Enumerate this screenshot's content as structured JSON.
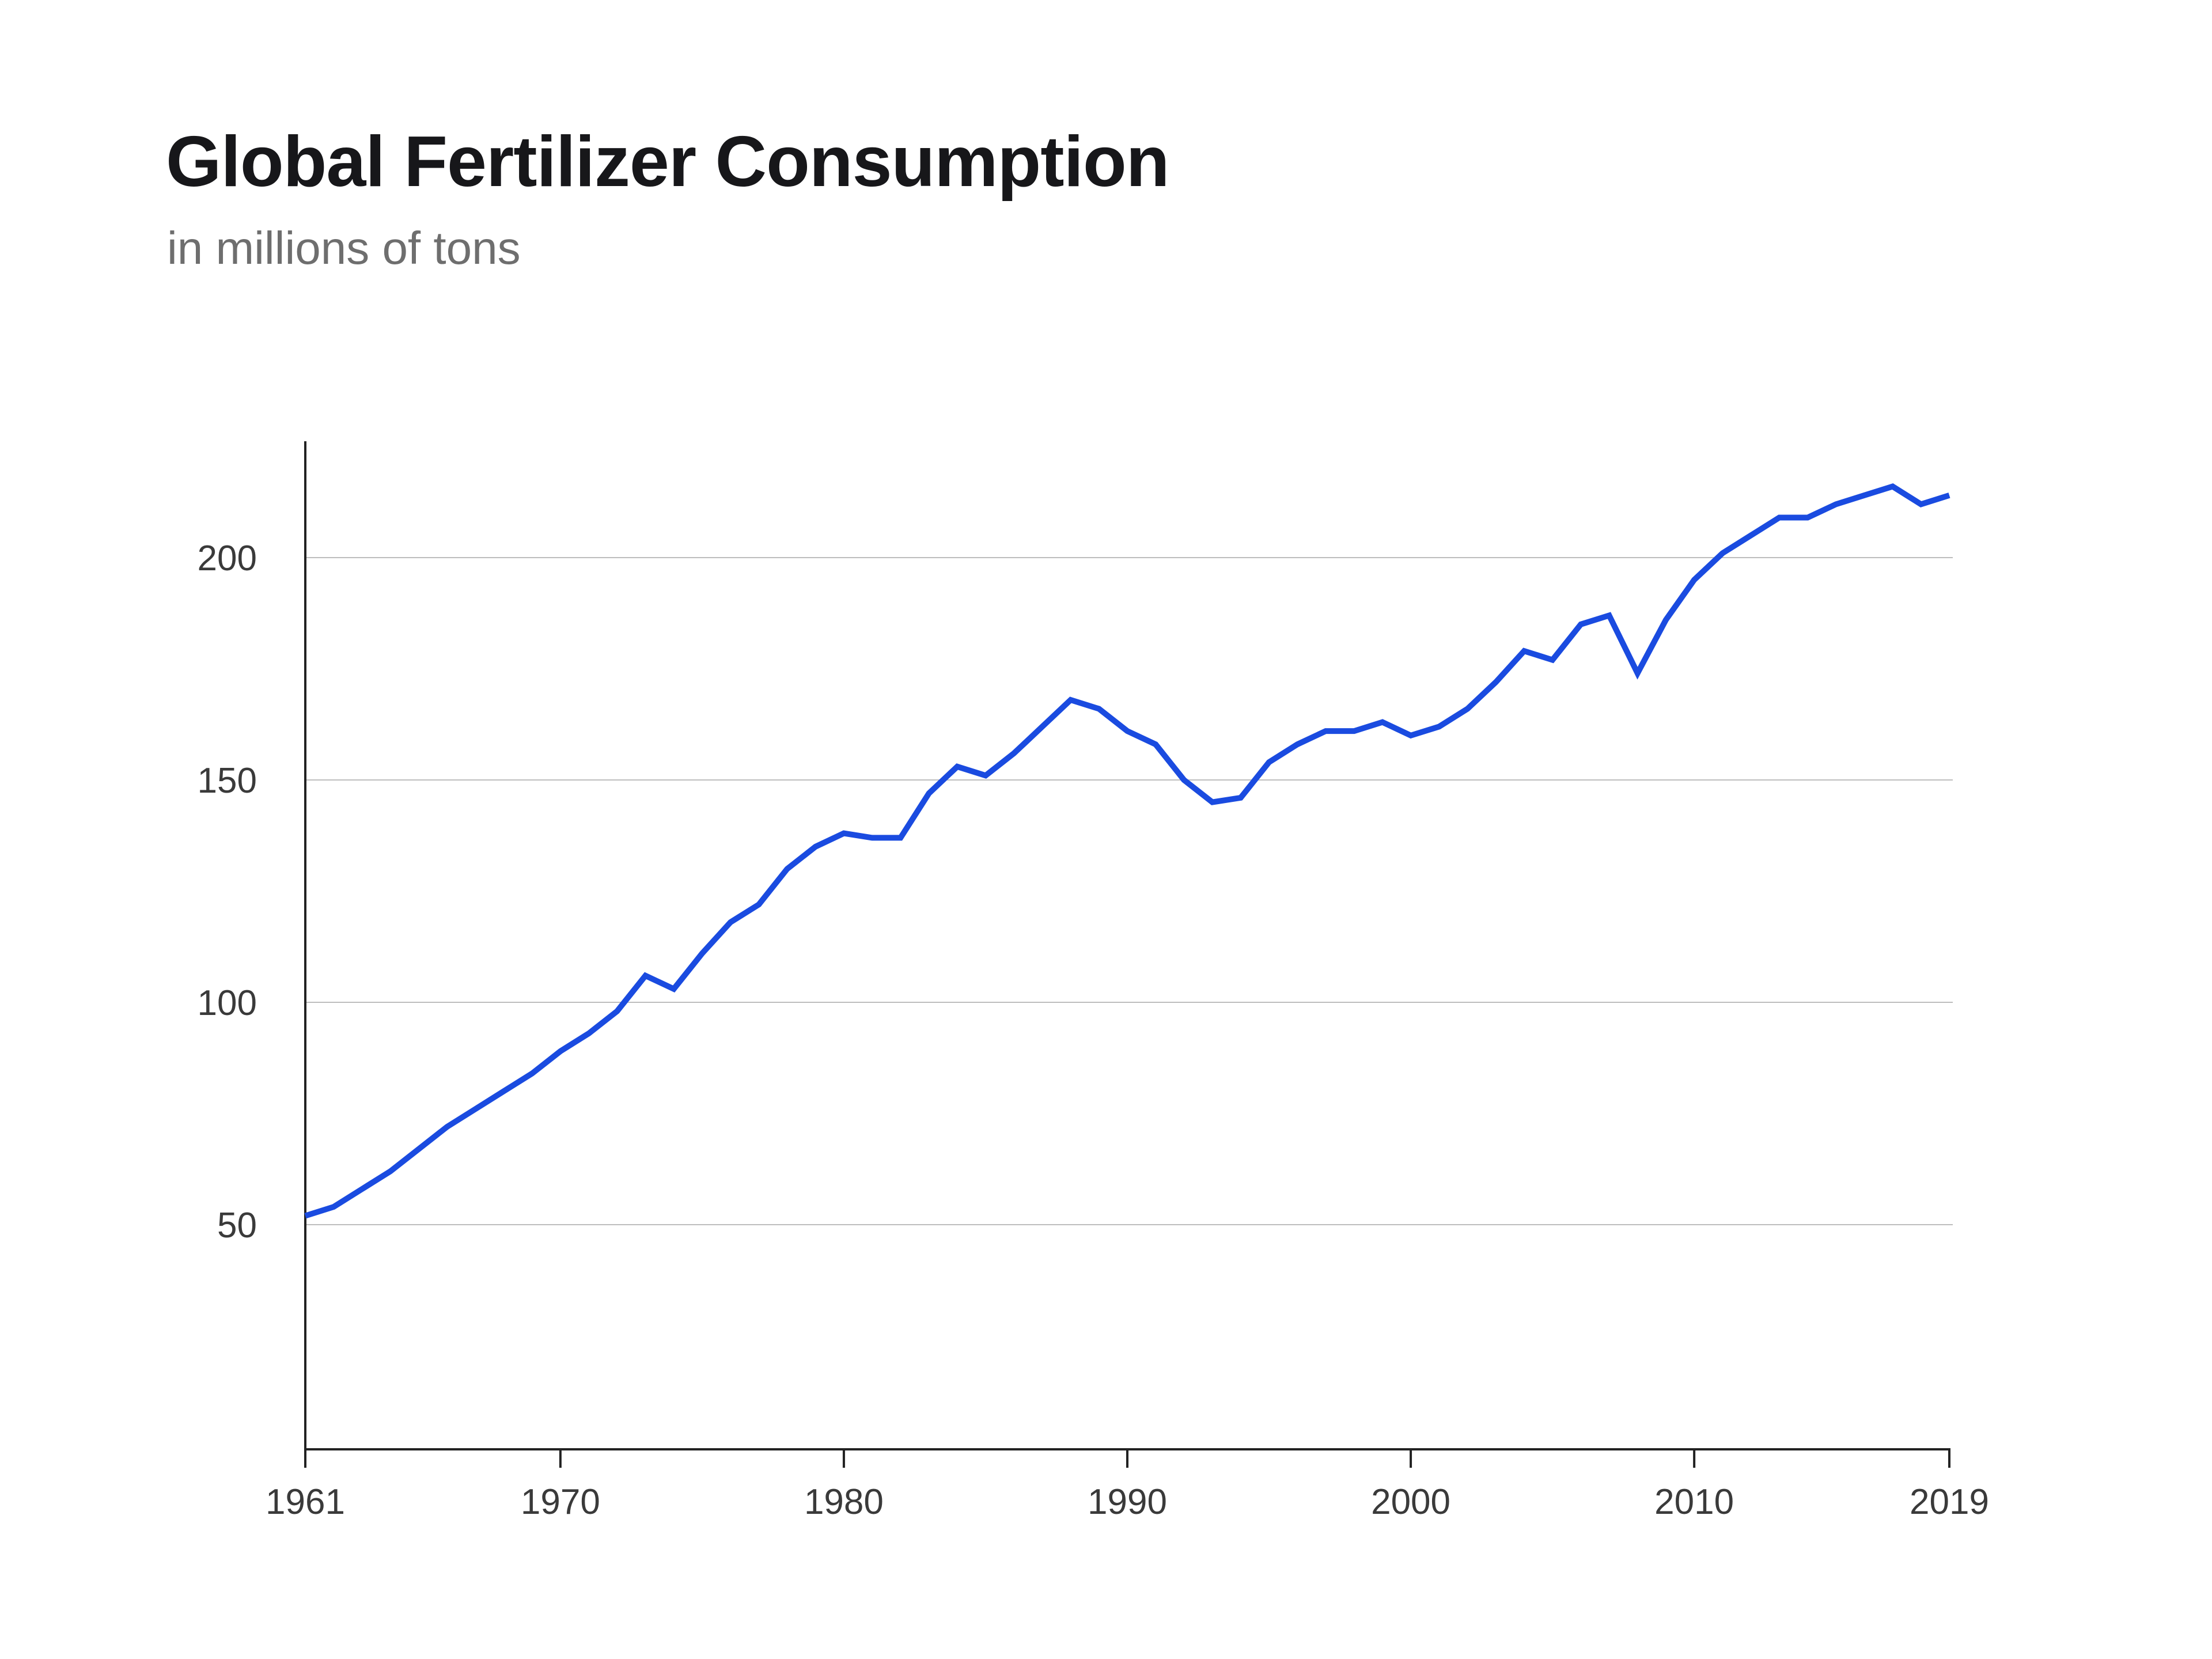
{
  "header": {
    "title": "Global Fertilizer Consumption",
    "subtitle": "in millions of tons"
  },
  "colors": {
    "line": "#1a4be0",
    "axis": "#222222",
    "grid": "#bdbdbd",
    "text": "#3a3a3a"
  },
  "chart_data": {
    "type": "line",
    "title": "Global Fertilizer Consumption",
    "subtitle": "in millions of tons",
    "xlabel": "",
    "ylabel": "",
    "xlim": [
      1961,
      2019
    ],
    "ylim": [
      0,
      226
    ],
    "grid": true,
    "legend": "none",
    "x_ticks": [
      1961,
      1970,
      1980,
      1990,
      2000,
      2010,
      2019
    ],
    "y_ticks": [
      50,
      100,
      150,
      200
    ],
    "series": [
      {
        "x": [
          1961,
          1962,
          1963,
          1964,
          1965,
          1966,
          1967,
          1968,
          1969,
          1970,
          1971,
          1972,
          1973,
          1974,
          1975,
          1976,
          1977,
          1978,
          1979,
          1980,
          1981,
          1982,
          1983,
          1984,
          1985,
          1986,
          1987,
          1988,
          1989,
          1990,
          1991,
          1992,
          1993,
          1994,
          1995,
          1996,
          1997,
          1998,
          1999,
          2000,
          2001,
          2002,
          2003,
          2004,
          2005,
          2006,
          2007,
          2008,
          2009,
          2010,
          2011,
          2012,
          2013,
          2014,
          2015,
          2016,
          2017,
          2018,
          2019
        ],
        "values": [
          52,
          54,
          58,
          62,
          67,
          72,
          76,
          80,
          84,
          89,
          93,
          98,
          106,
          103,
          111,
          118,
          122,
          130,
          135,
          138,
          137,
          137,
          147,
          153,
          151,
          156,
          162,
          168,
          166,
          161,
          158,
          150,
          145,
          146,
          154,
          158,
          161,
          161,
          163,
          160,
          162,
          166,
          172,
          179,
          177,
          185,
          187,
          174,
          186,
          195,
          201,
          205,
          209,
          209,
          212,
          214,
          216,
          212,
          214
        ]
      }
    ]
  }
}
